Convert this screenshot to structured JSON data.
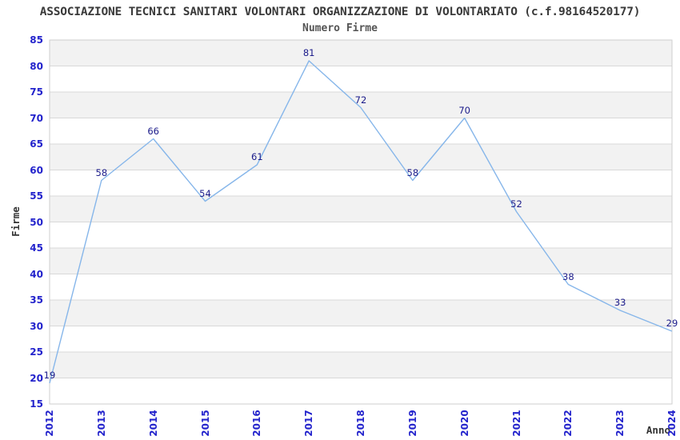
{
  "chart_data": {
    "type": "line",
    "title": "ASSOCIAZIONE TECNICI SANITARI VOLONTARI ORGANIZZAZIONE DI VOLONTARIATO (c.f.98164520177)",
    "subtitle": "Numero Firme",
    "xlabel": "Anno",
    "ylabel": "Firme",
    "categories": [
      "2012",
      "2013",
      "2014",
      "2015",
      "2016",
      "2017",
      "2018",
      "2019",
      "2020",
      "2021",
      "2022",
      "2023",
      "2024"
    ],
    "values": [
      19,
      58,
      66,
      54,
      61,
      81,
      72,
      58,
      70,
      52,
      38,
      33,
      29
    ],
    "ylim": [
      15,
      85
    ],
    "ytick_step": 5,
    "grid": true,
    "legend_position": "none",
    "data_labels_shown": true,
    "colors": {
      "line": "#86b6ea",
      "tick_labels": "#2323cc",
      "data_labels": "#1b1b8a",
      "band": "#f2f2f2",
      "gridline": "#d9d9d9",
      "plot_border": "#cfcfcf",
      "title": "#3a3a3a",
      "subtitle": "#555555",
      "axis_titles": "#333333"
    }
  }
}
